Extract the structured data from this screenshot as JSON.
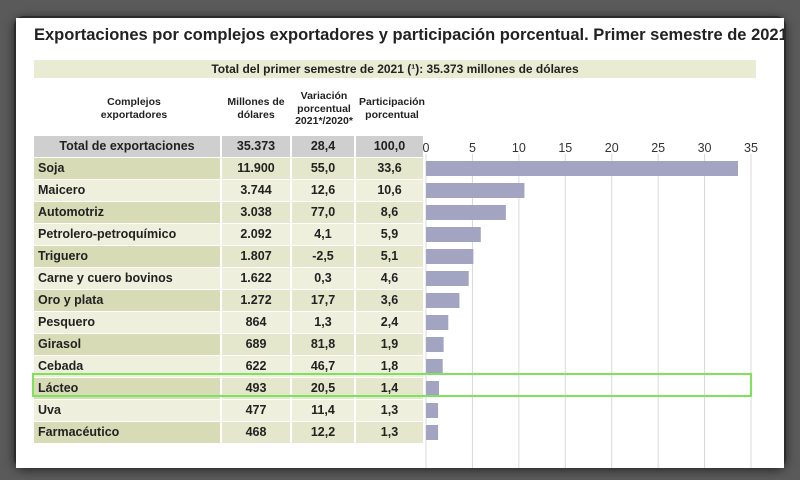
{
  "title": "Exportaciones por complejos exportadores y participación porcentual. Primer semestre de 2021",
  "total_line": "Total del primer semestre de 2021 (¹): 35.373 millones de dólares",
  "headers": {
    "complejos": "Complejos exportadores",
    "millones": "Millones de dólares",
    "variacion": "Variación porcentual 2021*/2020*",
    "participacion": "Participación porcentual"
  },
  "total_row": {
    "name": "Total de exportaciones",
    "millones": "35.373",
    "variacion": "28,4",
    "participacion": "100,0"
  },
  "rows": [
    {
      "name": "Soja",
      "millones": "11.900",
      "variacion": "55,0",
      "participacion": "33,6"
    },
    {
      "name": "Maicero",
      "millones": "3.744",
      "variacion": "12,6",
      "participacion": "10,6"
    },
    {
      "name": "Automotriz",
      "millones": "3.038",
      "variacion": "77,0",
      "participacion": "8,6"
    },
    {
      "name": "Petrolero-petroquímico",
      "millones": "2.092",
      "variacion": "4,1",
      "participacion": "5,9"
    },
    {
      "name": "Triguero",
      "millones": "1.807",
      "variacion": "-2,5",
      "participacion": "5,1"
    },
    {
      "name": "Carne y cuero bovinos",
      "millones": "1.622",
      "variacion": "0,3",
      "participacion": "4,6"
    },
    {
      "name": "Oro y plata",
      "millones": "1.272",
      "variacion": "17,7",
      "participacion": "3,6"
    },
    {
      "name": "Pesquero",
      "millones": "864",
      "variacion": "1,3",
      "participacion": "2,4"
    },
    {
      "name": "Girasol",
      "millones": "689",
      "variacion": "81,8",
      "participacion": "1,9"
    },
    {
      "name": "Cebada",
      "millones": "622",
      "variacion": "46,7",
      "participacion": "1,8"
    },
    {
      "name": "Lácteo",
      "millones": "493",
      "variacion": "20,5",
      "participacion": "1,4"
    },
    {
      "name": "Uva",
      "millones": "477",
      "variacion": "11,4",
      "participacion": "1,3"
    },
    {
      "name": "Farmacéutico",
      "millones": "468",
      "variacion": "12,2",
      "participacion": "1,3"
    }
  ],
  "chart_data": {
    "type": "bar",
    "orientation": "horizontal",
    "categories": [
      "Soja",
      "Maicero",
      "Automotriz",
      "Petrolero-petroquímico",
      "Triguero",
      "Carne y cuero bovinos",
      "Oro y plata",
      "Pesquero",
      "Girasol",
      "Cebada",
      "Lácteo",
      "Uva",
      "Farmacéutico"
    ],
    "values": [
      33.6,
      10.6,
      8.6,
      5.9,
      5.1,
      4.6,
      3.6,
      2.4,
      1.9,
      1.8,
      1.4,
      1.3,
      1.3
    ],
    "xlim": [
      0,
      35
    ],
    "ticks": [
      "0",
      "5",
      "10",
      "15",
      "20",
      "25",
      "30",
      "35"
    ],
    "grid": true,
    "colors": {
      "bar": "#a3a3c2",
      "grid": "#d8d8d8"
    },
    "highlighted_category": "Lácteo"
  },
  "colors": {
    "highlight": "#7ee25a"
  }
}
